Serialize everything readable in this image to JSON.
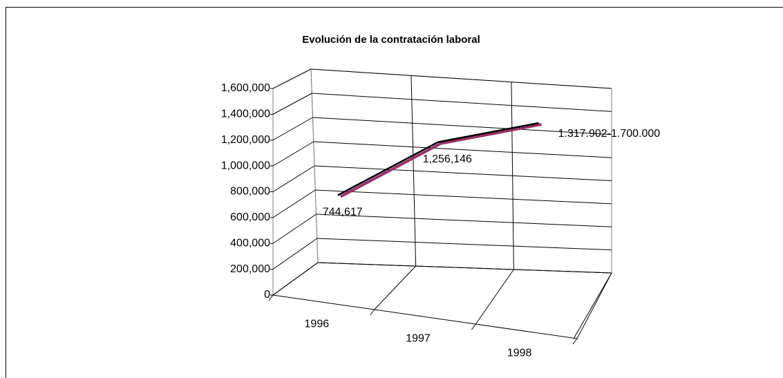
{
  "chart_data": {
    "type": "line3d",
    "title": "Evolución de la contratación laboral",
    "categories": [
      "1996",
      "1997",
      "1998"
    ],
    "series": [
      {
        "color": "#000000",
        "values": [
          744617,
          1256146,
          1500000
        ],
        "value_labels": [
          "744,617",
          "1,256,146",
          null
        ]
      }
    ],
    "annotation": "1.317.902-1.700.000",
    "ylim": [
      0,
      1600000
    ],
    "yticks": [
      0,
      {
        "value": 200000,
        "label": "200,000"
      },
      {
        "value": 400000,
        "label": "400,000"
      },
      {
        "value": 600000,
        "label": "600,000"
      },
      {
        "value": 800000,
        "label": "800,000"
      },
      {
        "value": 1000000,
        "label": "1,000,000"
      },
      {
        "value": 1200000,
        "label": "1,200,000"
      },
      {
        "value": 1400000,
        "label": "1,400,000"
      },
      {
        "value": 1600000,
        "label": "1,600,000"
      }
    ],
    "grid": true
  }
}
